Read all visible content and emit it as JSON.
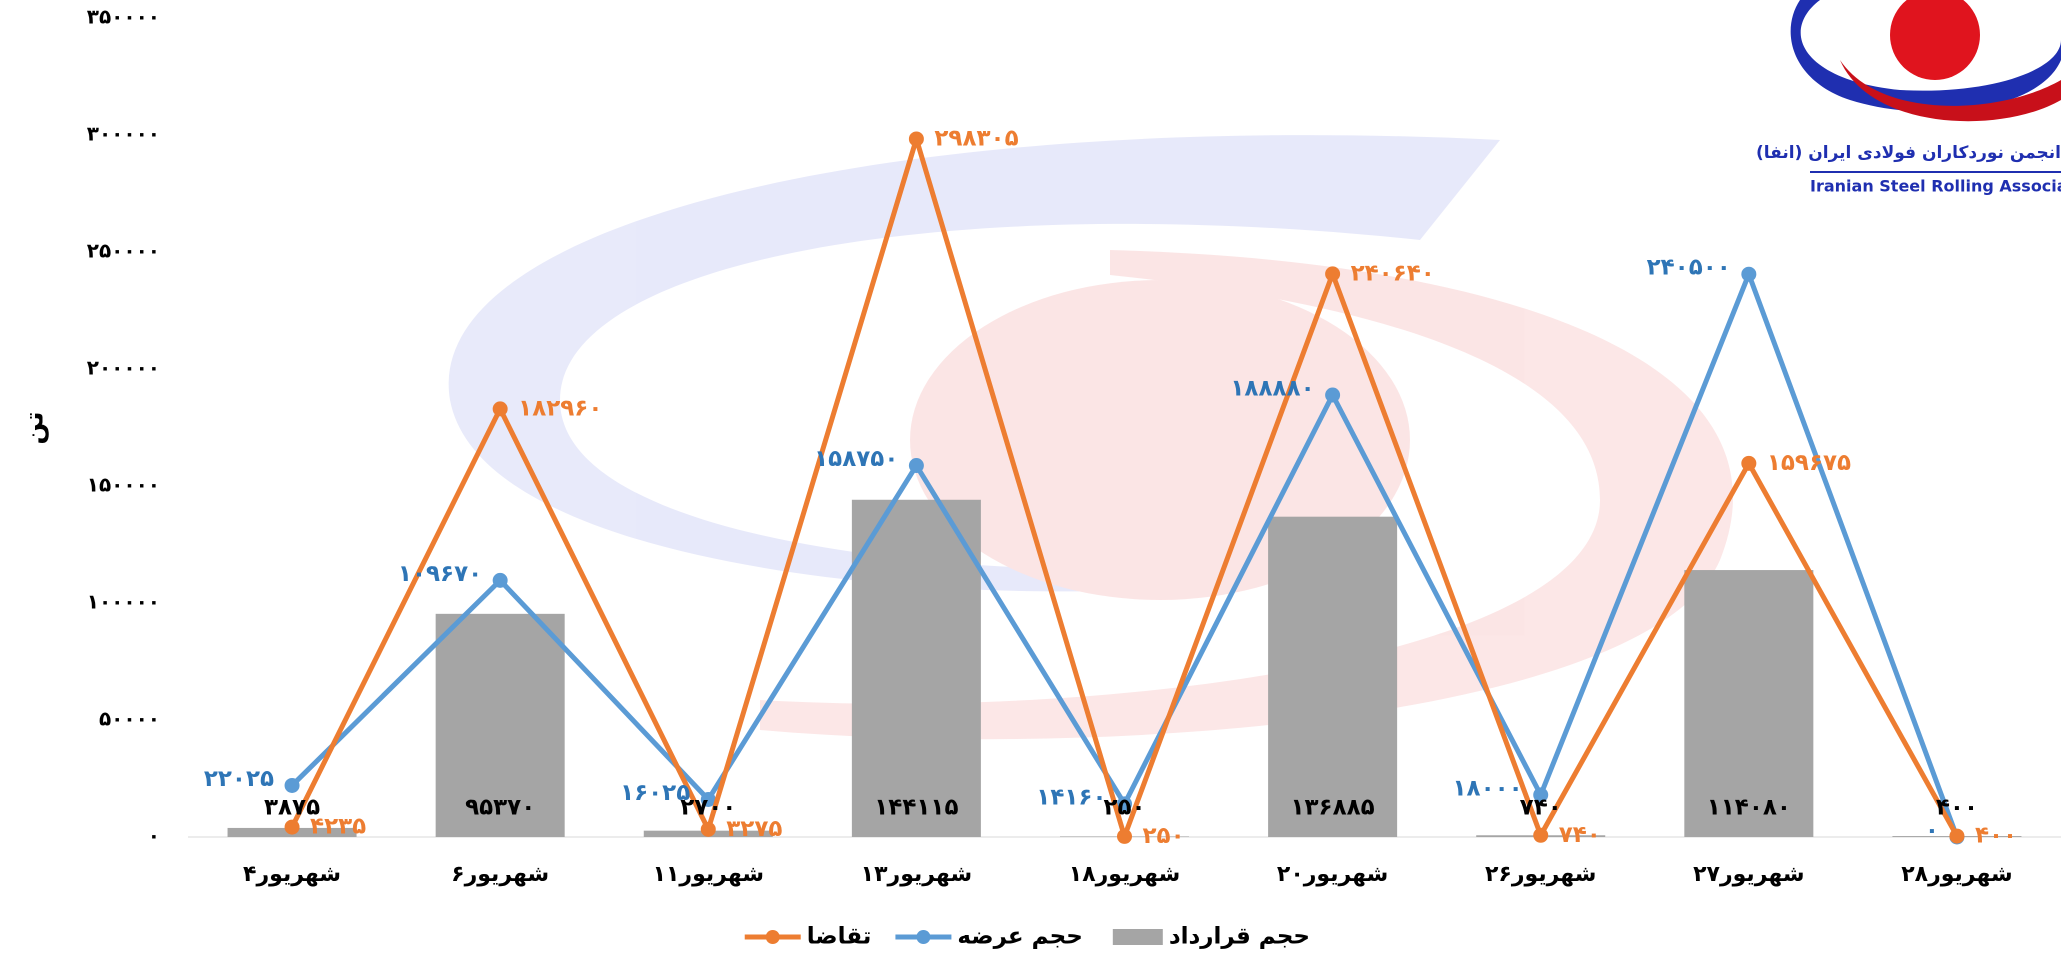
{
  "chart_data": {
    "type": "combo",
    "y_label": "تن",
    "categories": [
      "۴شهریور",
      "۶شهریور",
      "۱۱شهریور",
      "۱۳شهریور",
      "۱۸شهریور",
      "۲۰شهریور",
      "۲۶شهریور",
      "۲۷شهریور",
      "۲۸شهریور"
    ],
    "series": [
      {
        "name": "حجم قرارداد",
        "type": "bar",
        "color": "#a5a5a5",
        "label_color": "#000000",
        "values": [
          3875,
          95370,
          2700,
          144115,
          250,
          136885,
          740,
          114080,
          400
        ],
        "value_labels": [
          "۳۸۷۵",
          "۹۵۳۷۰",
          "۲۷۰۰",
          "۱۴۴۱۱۵",
          "۲۵۰",
          "۱۳۶۸۸۵",
          "۷۴۰",
          "۱۱۴۰۸۰",
          "۴۰۰"
        ]
      },
      {
        "name": "حجم عرضه",
        "type": "line",
        "color": "#5b9bd5",
        "label_color": "#2e75b6",
        "values": [
          22025,
          109670,
          16025,
          158750,
          14160,
          188880,
          18000,
          240500,
          0
        ],
        "value_labels": [
          "۲۲۰۲۵",
          "۱۰۹۶۷۰",
          "۱۶۰۲۵",
          "۱۵۸۷۵۰",
          "۱۴۱۶۰",
          "۱۸۸۸۸۰",
          "۱۸۰۰۰",
          "۲۴۰۵۰۰",
          "۰"
        ]
      },
      {
        "name": "تقاضا",
        "type": "line",
        "color": "#ed7d31",
        "label_color": "#ed7d31",
        "values": [
          4235,
          182960,
          3275,
          298305,
          250,
          240640,
          740,
          159675,
          400
        ],
        "value_labels": [
          "۴۲۳۵",
          "۱۸۲۹۶۰",
          "۳۲۷۵",
          "۲۹۸۳۰۵",
          "۲۵۰",
          "۲۴۰۶۴۰",
          "۷۴۰",
          "۱۵۹۶۷۵",
          "۴۰۰"
        ]
      }
    ],
    "ylim": [
      0,
      350000
    ],
    "yticks": [
      {
        "value": 0,
        "label": "۰"
      },
      {
        "value": 50000,
        "label": "۵۰۰۰۰"
      },
      {
        "value": 100000,
        "label": "۱۰۰۰۰۰"
      },
      {
        "value": 150000,
        "label": "۱۵۰۰۰۰"
      },
      {
        "value": 200000,
        "label": "۲۰۰۰۰۰"
      },
      {
        "value": 250000,
        "label": "۲۵۰۰۰۰"
      },
      {
        "value": 300000,
        "label": "۳۰۰۰۰۰"
      },
      {
        "value": 350000,
        "label": "۳۵۰۰۰۰"
      }
    ],
    "legend": "bottom"
  },
  "logo": {
    "title": "انجمن نوردکاران فولادی ایران (انفا)",
    "subtitle": "Iranian Steel Rolling Association"
  }
}
